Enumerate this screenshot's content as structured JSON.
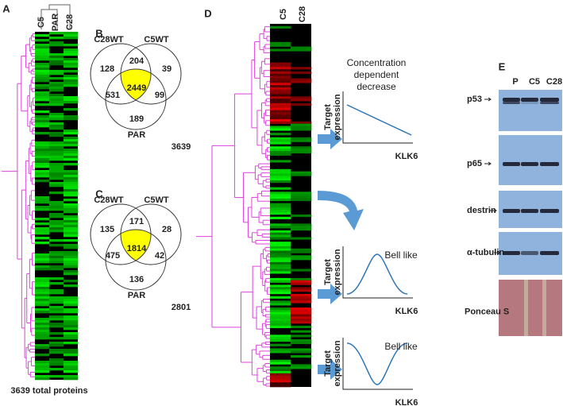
{
  "panels": {
    "A": {
      "label": "A",
      "columns": [
        "C5",
        "PAR",
        "C28"
      ],
      "caption": "3639 total proteins"
    },
    "B": {
      "label": "B",
      "sets": [
        "C28WT",
        "C5WT",
        "PAR"
      ],
      "regions": [
        "128",
        "204",
        "39",
        "531",
        "2449",
        "99",
        "189"
      ],
      "total": "3639"
    },
    "C": {
      "label": "C",
      "sets": [
        "C28WT",
        "C5WT",
        "PAR"
      ],
      "regions": [
        "135",
        "171",
        "28",
        "475",
        "1814",
        "42",
        "136"
      ],
      "total": "2801"
    },
    "D": {
      "label": "D",
      "columns": [
        "C5",
        "C28"
      ],
      "plots": [
        {
          "title": [
            "Concentration",
            "dependent",
            "decrease"
          ],
          "y_label": [
            "Target",
            "expression"
          ],
          "x_label": "KLK6"
        },
        {
          "title": [
            "Bell like"
          ],
          "y_label": [
            "Target",
            "expression"
          ],
          "x_label": "KLK6"
        },
        {
          "title": [
            "Bell like"
          ],
          "y_label": [
            "Target",
            "expression"
          ],
          "x_label": "KLK6"
        }
      ]
    },
    "E": {
      "label": "E",
      "columns": [
        "P",
        "C5",
        "C28"
      ],
      "blots": [
        "p53",
        "p65",
        "destrin",
        "α-tubulin",
        "Ponceau S"
      ]
    }
  }
}
